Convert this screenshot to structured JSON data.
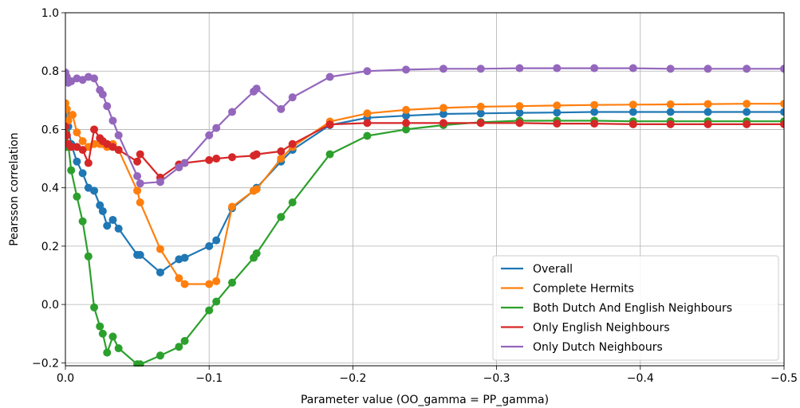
{
  "chart_data": {
    "type": "line",
    "title": "",
    "xlabel": "Parameter value (OO_gamma = PP_gamma)",
    "ylabel": "Pearsson correlation",
    "xlim": [
      0.0,
      -0.5
    ],
    "ylim": [
      -0.21,
      1.0
    ],
    "x_inverted": true,
    "grid": true,
    "legend_position": "lower-right",
    "xticks": [
      0.0,
      -0.1,
      -0.2,
      -0.3,
      -0.4,
      -0.5
    ],
    "xtick_labels": [
      "0.0",
      "−0.1",
      "−0.2",
      "−0.3",
      "−0.4",
      "−0.5"
    ],
    "yticks": [
      -0.2,
      0.0,
      0.2,
      0.4,
      0.6,
      0.8,
      1.0
    ],
    "ytick_labels": [
      "−0.2",
      "0.0",
      "0.2",
      "0.4",
      "0.6",
      "0.8",
      "1.0"
    ],
    "series": [
      {
        "name": "Overall",
        "color": "#1f77b4",
        "x": [
          0.0,
          -0.001,
          -0.002,
          -0.004,
          -0.008,
          -0.012,
          -0.016,
          -0.02,
          -0.024,
          -0.026,
          -0.029,
          -0.033,
          -0.037,
          -0.05,
          -0.052,
          -0.066,
          -0.079,
          -0.083,
          -0.1,
          -0.105,
          -0.116,
          -0.131,
          -0.133,
          -0.15,
          -0.158,
          -0.184,
          -0.21,
          -0.237,
          -0.263,
          -0.289,
          -0.316,
          -0.342,
          -0.368,
          -0.395,
          -0.421,
          -0.447,
          -0.474,
          -0.5
        ],
        "y": [
          0.67,
          0.65,
          0.61,
          0.55,
          0.49,
          0.45,
          0.4,
          0.39,
          0.34,
          0.32,
          0.27,
          0.29,
          0.26,
          0.17,
          0.17,
          0.11,
          0.155,
          0.16,
          0.2,
          0.22,
          0.33,
          0.39,
          0.4,
          0.49,
          0.53,
          0.615,
          0.64,
          0.647,
          0.653,
          0.655,
          0.657,
          0.658,
          0.66,
          0.66,
          0.66,
          0.66,
          0.66,
          0.66
        ]
      },
      {
        "name": "Complete Hermits",
        "color": "#ff7f0e",
        "x": [
          0.0,
          -0.001,
          -0.002,
          -0.005,
          -0.008,
          -0.012,
          -0.016,
          -0.02,
          -0.024,
          -0.026,
          -0.029,
          -0.033,
          -0.037,
          -0.05,
          -0.052,
          -0.066,
          -0.079,
          -0.083,
          -0.1,
          -0.105,
          -0.116,
          -0.131,
          -0.133,
          -0.15,
          -0.158,
          -0.184,
          -0.21,
          -0.237,
          -0.263,
          -0.289,
          -0.316,
          -0.342,
          -0.368,
          -0.395,
          -0.421,
          -0.447,
          -0.474,
          -0.5
        ],
        "y": [
          0.69,
          0.67,
          0.63,
          0.65,
          0.59,
          0.56,
          0.54,
          0.55,
          0.55,
          0.55,
          0.54,
          0.55,
          0.53,
          0.39,
          0.35,
          0.19,
          0.09,
          0.07,
          0.07,
          0.08,
          0.335,
          0.39,
          0.395,
          0.5,
          0.54,
          0.627,
          0.655,
          0.667,
          0.674,
          0.678,
          0.68,
          0.682,
          0.684,
          0.685,
          0.686,
          0.687,
          0.688,
          0.688
        ]
      },
      {
        "name": "Both Dutch And English Neighbours",
        "color": "#2ca02c",
        "x": [
          0.0,
          -0.001,
          -0.002,
          -0.004,
          -0.008,
          -0.012,
          -0.016,
          -0.02,
          -0.024,
          -0.026,
          -0.029,
          -0.033,
          -0.037,
          -0.05,
          -0.052,
          -0.066,
          -0.079,
          -0.083,
          -0.1,
          -0.105,
          -0.116,
          -0.131,
          -0.133,
          -0.15,
          -0.158,
          -0.184,
          -0.21,
          -0.237,
          -0.263,
          -0.289,
          -0.316,
          -0.342,
          -0.368,
          -0.395,
          -0.421,
          -0.447,
          -0.474,
          -0.5
        ],
        "y": [
          0.59,
          0.54,
          0.55,
          0.46,
          0.37,
          0.285,
          0.165,
          -0.01,
          -0.075,
          -0.1,
          -0.165,
          -0.11,
          -0.15,
          -0.205,
          -0.205,
          -0.175,
          -0.145,
          -0.125,
          -0.02,
          0.01,
          0.075,
          0.16,
          0.175,
          0.3,
          0.35,
          0.515,
          0.578,
          0.6,
          0.615,
          0.625,
          0.63,
          0.63,
          0.63,
          0.628,
          0.628,
          0.628,
          0.628,
          0.628
        ]
      },
      {
        "name": "Only English Neighbours",
        "color": "#d62728",
        "x": [
          0.0,
          -0.001,
          -0.002,
          -0.004,
          -0.008,
          -0.012,
          -0.016,
          -0.02,
          -0.024,
          -0.026,
          -0.029,
          -0.033,
          -0.037,
          -0.05,
          -0.052,
          -0.066,
          -0.079,
          -0.083,
          -0.1,
          -0.105,
          -0.116,
          -0.131,
          -0.133,
          -0.15,
          -0.158,
          -0.184,
          -0.21,
          -0.237,
          -0.263,
          -0.289,
          -0.316,
          -0.342,
          -0.368,
          -0.395,
          -0.421,
          -0.447,
          -0.474,
          -0.5
        ],
        "y": [
          0.61,
          0.58,
          0.55,
          0.54,
          0.54,
          0.53,
          0.485,
          0.6,
          0.57,
          0.56,
          0.55,
          0.54,
          0.53,
          0.49,
          0.515,
          0.435,
          0.48,
          0.485,
          0.495,
          0.5,
          0.505,
          0.51,
          0.515,
          0.525,
          0.55,
          0.617,
          0.622,
          0.622,
          0.622,
          0.622,
          0.622,
          0.62,
          0.62,
          0.618,
          0.618,
          0.618,
          0.618,
          0.618
        ]
      },
      {
        "name": "Only Dutch Neighbours",
        "color": "#9467bd",
        "x": [
          0.0,
          -0.001,
          -0.002,
          -0.004,
          -0.008,
          -0.012,
          -0.016,
          -0.02,
          -0.024,
          -0.026,
          -0.029,
          -0.033,
          -0.037,
          -0.05,
          -0.052,
          -0.066,
          -0.079,
          -0.083,
          -0.1,
          -0.105,
          -0.116,
          -0.131,
          -0.133,
          -0.15,
          -0.158,
          -0.184,
          -0.21,
          -0.237,
          -0.263,
          -0.289,
          -0.316,
          -0.342,
          -0.368,
          -0.395,
          -0.421,
          -0.447,
          -0.474,
          -0.5
        ],
        "y": [
          0.795,
          0.78,
          0.76,
          0.765,
          0.775,
          0.77,
          0.78,
          0.775,
          0.735,
          0.72,
          0.68,
          0.63,
          0.58,
          0.44,
          0.415,
          0.42,
          0.47,
          0.485,
          0.58,
          0.605,
          0.66,
          0.73,
          0.74,
          0.67,
          0.71,
          0.78,
          0.8,
          0.805,
          0.808,
          0.808,
          0.81,
          0.81,
          0.81,
          0.81,
          0.808,
          0.808,
          0.808,
          0.808
        ]
      }
    ]
  }
}
